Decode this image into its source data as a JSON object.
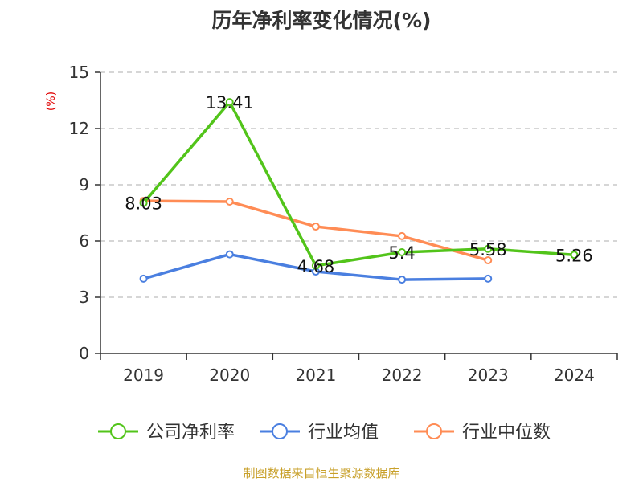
{
  "chart_data": {
    "type": "line",
    "title": "历年净利率变化情况(%)",
    "ylabel": "(%)",
    "xlabel": "",
    "ylim": [
      0,
      15
    ],
    "yticks": [
      0,
      3,
      6,
      9,
      12,
      15
    ],
    "grid": true,
    "legend_position": "bottom",
    "categories": [
      "2019",
      "2020",
      "2021",
      "2022",
      "2023",
      "2024"
    ],
    "series": [
      {
        "name": "公司净利率",
        "color": "#52c41a",
        "values": [
          8.03,
          13.41,
          4.68,
          5.4,
          5.58,
          5.26
        ],
        "labels": [
          "8.03",
          "13.41",
          "4.68",
          "5.4",
          "5.58",
          "5.26"
        ]
      },
      {
        "name": "行业均值",
        "color": "#4a7fe0",
        "values": [
          3.99,
          5.29,
          4.37,
          3.94,
          3.99,
          null
        ]
      },
      {
        "name": "行业中位数",
        "color": "#ff8c55",
        "values": [
          8.14,
          8.1,
          6.77,
          6.26,
          4.97,
          null
        ]
      }
    ]
  },
  "footer": "制图数据来自恒生聚源数据库"
}
